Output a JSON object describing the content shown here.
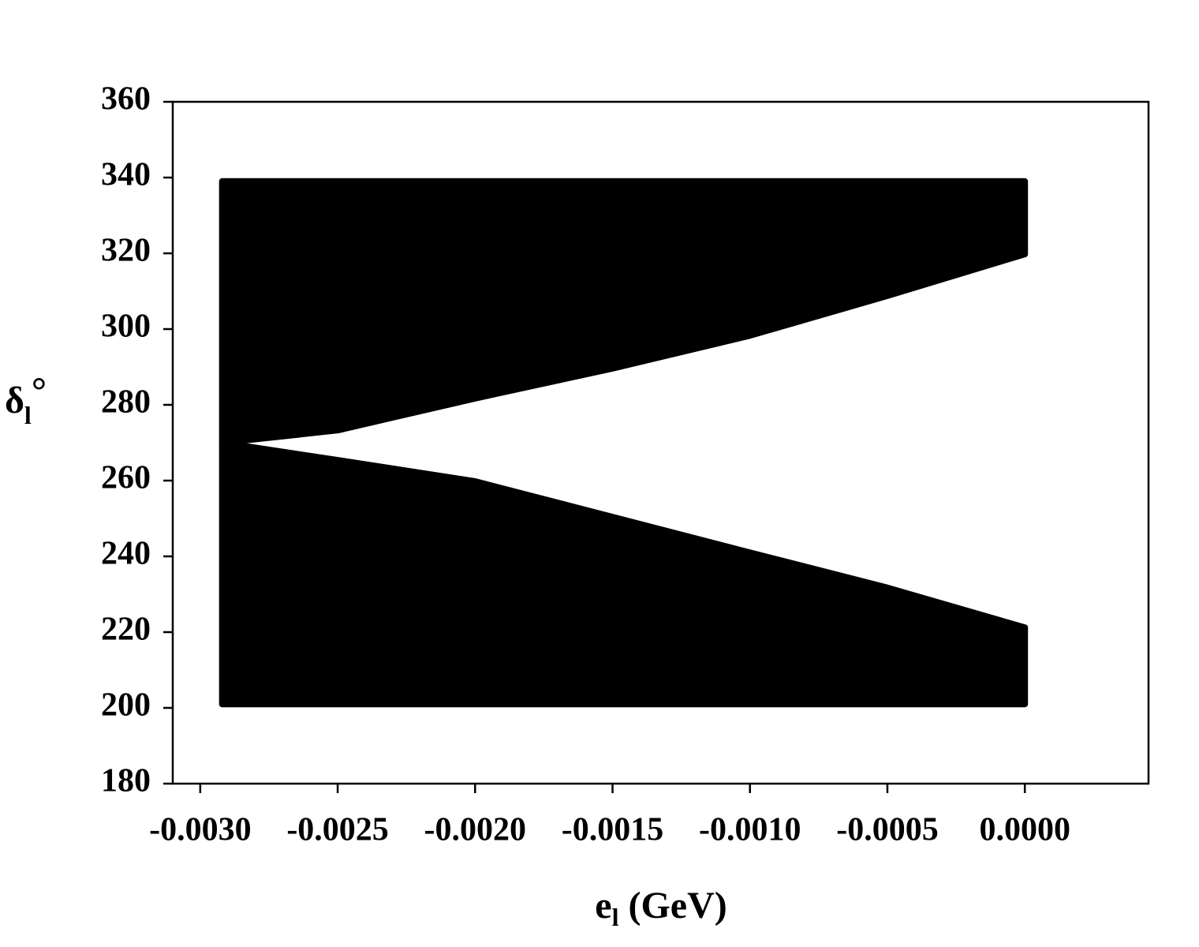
{
  "chart_data": {
    "type": "range-area",
    "x_label": [
      "e",
      "l",
      " (GeV)"
    ],
    "y_label": [
      "δ",
      "l",
      "°"
    ],
    "x": [
      -0.00292,
      -0.0025,
      -0.002,
      -0.0015,
      -0.001,
      -0.0005,
      0
    ],
    "series": [
      {
        "color": "#000000",
        "low": [
          270,
          273.3,
          281.7,
          289.6,
          298.3,
          308.8,
          319.8
        ],
        "high": [
          339,
          339,
          339,
          339,
          339,
          339,
          339
        ]
      },
      {
        "color": "#000000",
        "low": [
          201,
          201,
          201,
          201,
          201,
          201,
          201
        ],
        "high": [
          270,
          265.4,
          259.8,
          250.4,
          241,
          231.7,
          221.2
        ]
      }
    ],
    "xlim": [
      -0.0031,
      0.00045
    ],
    "ylim": [
      180,
      360
    ],
    "xticks": [
      {
        "value": -0.003,
        "label": "-0.0030"
      },
      {
        "value": -0.0025,
        "label": "-0.0025"
      },
      {
        "value": -0.002,
        "label": "-0.0020"
      },
      {
        "value": -0.0015,
        "label": "-0.0015"
      },
      {
        "value": -0.001,
        "label": "-0.0010"
      },
      {
        "value": -0.0005,
        "label": "-0.0005"
      },
      {
        "value": 0,
        "label": "0.0000"
      }
    ],
    "yticks": [
      180,
      200,
      220,
      240,
      260,
      280,
      300,
      320,
      340,
      360
    ],
    "grid": false
  }
}
